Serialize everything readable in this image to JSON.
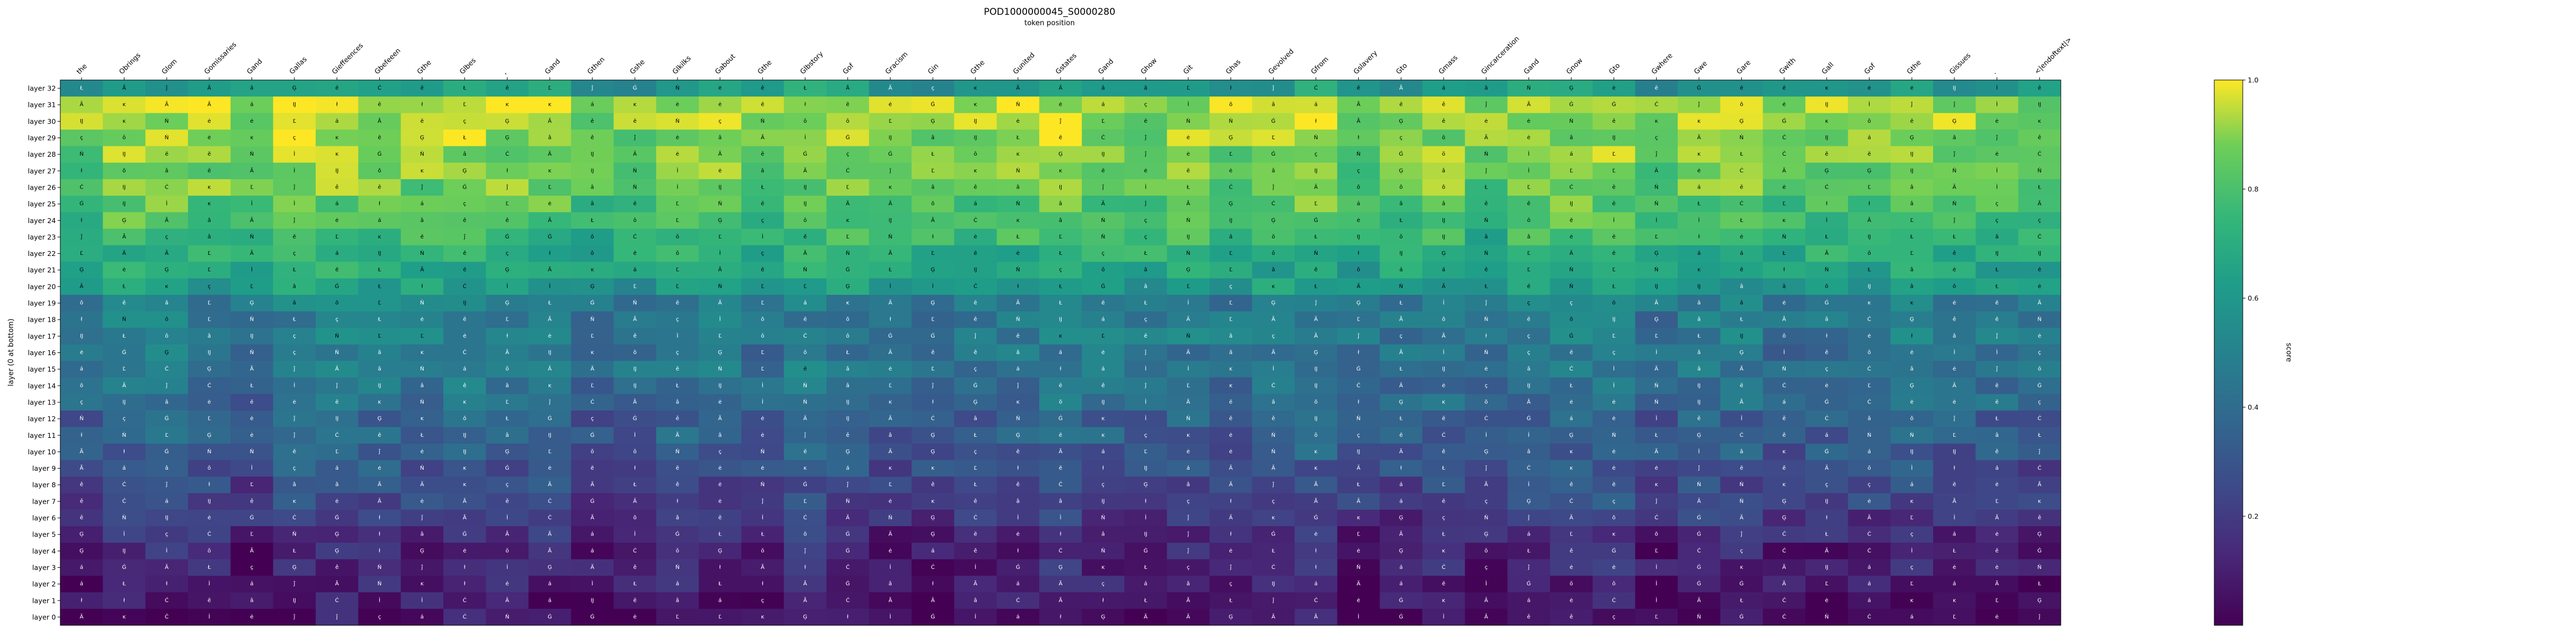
{
  "chart_data": {
    "type": "heatmap",
    "title": "POD1000000045_S0000280",
    "subtitle": "token position",
    "ylabel": "layer (0 at bottom)",
    "colorbar_label": "score",
    "colormap": "viridis",
    "vmin": 0.0,
    "vmax": 1.0,
    "colorbar_ticks": [
      0.2,
      0.4,
      0.6,
      0.8,
      1.0
    ],
    "x_tokens": [
      "the",
      "Obrings",
      "Glom",
      "Gomissaries",
      "Gand",
      "Gallas",
      "Gieffeences",
      "Gbefeeen",
      "Gthe",
      "Glbes",
      ",",
      "Gand",
      "Gthen",
      "Gshe",
      "Glkilks",
      "Gabout",
      "Gthe",
      "Glbstory",
      "Gof",
      "Gracism",
      "Gin",
      "Gthe",
      "Gunited",
      "Gstates",
      "Gand",
      "Ghow",
      "Git",
      "Ghas",
      "Gevolved",
      "Gfrom",
      "Gslavery",
      "Gto",
      "Gmass",
      "Gincarceration",
      "Gand",
      "Gnow",
      "Gto",
      "Gwhere",
      "Gwe",
      "Gare",
      "Gwith",
      "Gall",
      "Gof",
      "Gthe",
      "Gissues",
      ".",
      "<|endoftext|>"
    ],
    "y_layers": [
      "layer 0",
      "layer 1",
      "layer 2",
      "layer 3",
      "layer 4",
      "layer 5",
      "layer 6",
      "layer 7",
      "layer 8",
      "layer 9",
      "layer 10",
      "layer 11",
      "layer 12",
      "layer 13",
      "layer 14",
      "layer 15",
      "layer 16",
      "layer 17",
      "layer 18",
      "layer 19",
      "layer 20",
      "layer 21",
      "layer 22",
      "layer 23",
      "layer 24",
      "layer 25",
      "layer 26",
      "layer 27",
      "layer 28",
      "layer 29",
      "layer 30",
      "layer 31",
      "layer 32"
    ],
    "layer_base": [
      0.05,
      0.08,
      0.1,
      0.12,
      0.12,
      0.16,
      0.2,
      0.25,
      0.26,
      0.3,
      0.33,
      0.35,
      0.35,
      0.4,
      0.42,
      0.45,
      0.44,
      0.48,
      0.46,
      0.48,
      0.62,
      0.68,
      0.72,
      0.76,
      0.8,
      0.82,
      0.86,
      0.88,
      0.88,
      0.9,
      0.93,
      0.94,
      0.62
    ],
    "col_offset": [
      -0.05,
      0.02,
      0.03,
      0.0,
      -0.05,
      0.02,
      0.03,
      0.02,
      0.0,
      0.03,
      0.0,
      0.0,
      -0.05,
      -0.03,
      0.02,
      0.0,
      -0.05,
      0.02,
      0.0,
      -0.05,
      -0.03,
      -0.02,
      0.0,
      0.03,
      0.0,
      -0.02,
      0.0,
      -0.03,
      0.0,
      0.02,
      -0.05,
      -0.03,
      0.0,
      -0.05,
      0.0,
      0.02,
      0.03,
      -0.05,
      0.0,
      0.0,
      -0.05,
      -0.03,
      -0.02,
      0.0,
      -0.03,
      -0.02,
      -0.05
    ],
    "cell_text_glyphs": [
      "Ä",
      "ł",
      "Ġ",
      "Ċ",
      "á",
      "Ã",
      "Ģ",
      "ě",
      "ĸ",
      "Ĳ",
      "ō",
      "â",
      "Ł",
      "Ľ",
      "ç",
      "ĕ",
      "Ì",
      "ĵ",
      "ė",
      "Ń"
    ],
    "legend_position": "right"
  }
}
